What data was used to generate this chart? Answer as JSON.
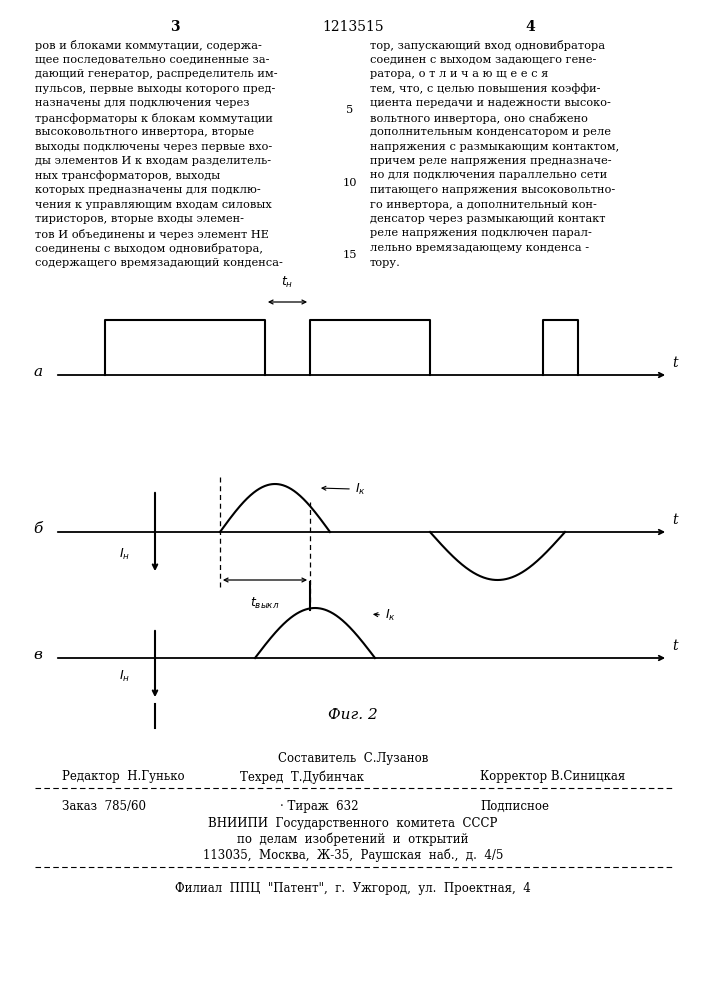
{
  "patent_num": "1213515",
  "page_left": "3",
  "page_right": "4",
  "row_a_label": "а",
  "row_b_label": "б",
  "row_c_label": "в",
  "t_label": "t",
  "fig_label": "Фиг. 2",
  "left_col_text": "ров и блоками коммутации, содержа-\nщее последовательно соединенные за-\nдающий генератор, распределитель им-\nпульсов, первые выходы которого пред-\nназначены для подключения через\nтрансформаторы к блокам коммутации\nвысоковольтного инвертора, вторые\nвыходы подключены через первые вхо-\nды элементов И к входам разделитель-\nных трансформаторов, выходы\nкоторых предназначены для подклю-\nчения к управляющим входам силовых\nтиристоров, вторые входы элемен-\nтов И объединены и через элемент НЕ\nсоединены с выходом одновибратора,\nсодержащего времязадающий конденса-",
  "right_col_text": "тор, запускающий вход одновибратора\nсоединен с выходом задающего гене-\nратора, о т л и ч а ю щ е е с я\nтем, что, с целью повышения коэффи-\nциента передачи и надежности высоко-\nвольтного инвертора, оно снабжено\nдополнительным конденсатором и реле\nнапряжения с размыкающим контактом,\nпричем реле напряжения предназначе-\nно для подключения параллельно сети\nпитающего напряжения высоковольтно-\nго инвертора, а дополнительный кон-\nденсатор через размыкающий контакт\nреле напряжения подключен парал-\nлельно времязадающему конденса -\nтору.",
  "line5": "5",
  "line10": "10",
  "line15": "15",
  "editor_label": "Редактор  Н.Гунько",
  "sostavitel_label": "Составитель  С.Лузанов",
  "tekhred_label": "Техред  Т.Дубинчак",
  "korrektor_label": "Корректор В.Синицкая",
  "zakaz_label": "Заказ  785/60",
  "tirazh_label": "Тираж  632",
  "podpisnoe_label": "Подписное",
  "vniiipi_label": "ВНИИПИ  Государственного  комитета  СССР",
  "dela_label": "по  делам  изобретений  и  открытий",
  "address_label": "113035,  Москва,  Ж-35,  Раушская  наб.,  д.  4/5",
  "filial_label": "Филиал  ППЦ  \"Патент\",  г.  Ужгород,  ул.  Проектная,  4",
  "bg_color": "#ffffff",
  "text_color": "#000000"
}
